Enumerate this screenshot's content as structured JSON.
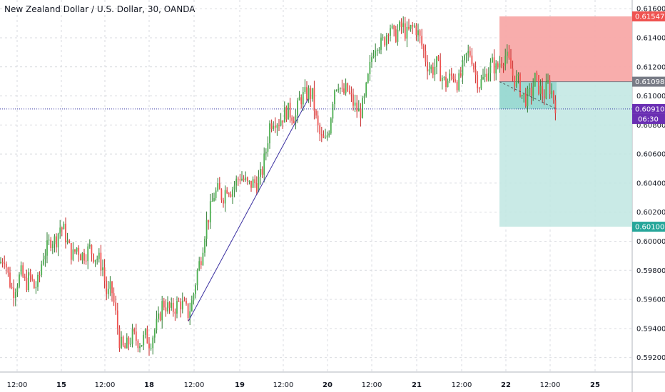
{
  "title": "New Zealand Dollar / U.S. Dollar, 30, OANDA",
  "colors": {
    "up": "#26a69a",
    "up_body": "#4caf50",
    "down": "#ef5350",
    "grid": "#d9dbe0",
    "axis_text": "#131722",
    "sl_zone": "#f8a9a8",
    "tp_zone": "#bfe6e2",
    "entry_line": "#787b86",
    "price_line": "#3d3da8",
    "trend_line": "#3a2fa0",
    "entry_label_bg": "#787b86",
    "price_label_bg": "#6a2fb3",
    "sl_label_bg": "#ef5350",
    "tp_label_bg": "#26a69a"
  },
  "chart_data": {
    "type": "candlestick",
    "title": "New Zealand Dollar / U.S. Dollar, 30, OANDA",
    "x_axis": {
      "ticks": [
        "12:00",
        "15",
        "12:00",
        "18",
        "12:00",
        "19",
        "12:00",
        "20",
        "12:00",
        "21",
        "12:00",
        "22",
        "12:00",
        "25"
      ],
      "bold": [
        "15",
        "18",
        "19",
        "20",
        "21",
        "22",
        "25"
      ]
    },
    "y_axis": {
      "range": [
        0.591,
        0.6166
      ],
      "ticks": [
        "0.61600",
        "0.61400",
        "0.61200",
        "0.61000",
        "0.60800",
        "0.60600",
        "0.60400",
        "0.60200",
        "0.60000",
        "0.59800",
        "0.59600",
        "0.59400",
        "0.59200"
      ],
      "tick_values": [
        0.616,
        0.614,
        0.612,
        0.61,
        0.608,
        0.606,
        0.604,
        0.602,
        0.6,
        0.598,
        0.596,
        0.594,
        0.592
      ]
    },
    "close_path": [
      [
        0,
        0.5985
      ],
      [
        6,
        0.599
      ],
      [
        12,
        0.5975
      ],
      [
        18,
        0.5965
      ],
      [
        24,
        0.5972
      ],
      [
        30,
        0.5978
      ],
      [
        36,
        0.597
      ],
      [
        42,
        0.5976
      ],
      [
        48,
        0.5968
      ],
      [
        54,
        0.5972
      ],
      [
        60,
        0.599
      ],
      [
        66,
        0.5995
      ],
      [
        72,
        0.6002
      ],
      [
        78,
        0.6
      ],
      [
        84,
        0.601
      ],
      [
        90,
        0.6007
      ],
      [
        96,
        0.5996
      ],
      [
        102,
        0.599
      ],
      [
        108,
        0.5996
      ],
      [
        114,
        0.599
      ],
      [
        120,
        0.5992
      ],
      [
        126,
        0.5995
      ],
      [
        132,
        0.599
      ],
      [
        138,
        0.5988
      ],
      [
        144,
        0.5982
      ],
      [
        150,
        0.5962
      ],
      [
        156,
        0.5968
      ],
      [
        162,
        0.595
      ],
      [
        168,
        0.593
      ],
      [
        174,
        0.5925
      ],
      [
        180,
        0.593
      ],
      [
        186,
        0.5935
      ],
      [
        192,
        0.5932
      ],
      [
        198,
        0.593
      ],
      [
        204,
        0.5935
      ],
      [
        210,
        0.593
      ],
      [
        216,
        0.5938
      ],
      [
        222,
        0.5945
      ],
      [
        228,
        0.5958
      ],
      [
        234,
        0.5955
      ],
      [
        240,
        0.5952
      ],
      [
        246,
        0.5955
      ],
      [
        252,
        0.5958
      ],
      [
        258,
        0.5955
      ],
      [
        264,
        0.595
      ],
      [
        270,
        0.596
      ],
      [
        276,
        0.5978
      ],
      [
        282,
        0.599
      ],
      [
        288,
        0.601
      ],
      [
        294,
        0.602
      ],
      [
        300,
        0.6032
      ],
      [
        306,
        0.6035
      ],
      [
        312,
        0.603
      ],
      [
        318,
        0.6038
      ],
      [
        324,
        0.6035
      ],
      [
        330,
        0.604
      ],
      [
        336,
        0.6045
      ],
      [
        342,
        0.6042
      ],
      [
        348,
        0.6038
      ],
      [
        354,
        0.604
      ],
      [
        360,
        0.604
      ],
      [
        366,
        0.6045
      ],
      [
        372,
        0.606
      ],
      [
        378,
        0.608
      ],
      [
        384,
        0.6085
      ],
      [
        390,
        0.6082
      ],
      [
        396,
        0.6086
      ],
      [
        402,
        0.609
      ],
      [
        408,
        0.6088
      ],
      [
        414,
        0.6085
      ],
      [
        420,
        0.6098
      ],
      [
        426,
        0.61
      ],
      [
        432,
        0.6102
      ],
      [
        438,
        0.61
      ],
      [
        444,
        0.608
      ],
      [
        450,
        0.607
      ],
      [
        456,
        0.6068
      ],
      [
        462,
        0.608
      ],
      [
        468,
        0.6105
      ],
      [
        474,
        0.611
      ],
      [
        480,
        0.61
      ],
      [
        486,
        0.6105
      ],
      [
        492,
        0.6098
      ],
      [
        498,
        0.6092
      ],
      [
        504,
        0.6088
      ],
      [
        510,
        0.6095
      ],
      [
        516,
        0.6112
      ],
      [
        522,
        0.613
      ],
      [
        528,
        0.6138
      ],
      [
        534,
        0.6135
      ],
      [
        540,
        0.614
      ],
      [
        546,
        0.615
      ],
      [
        552,
        0.614
      ],
      [
        558,
        0.6145
      ],
      [
        564,
        0.6148
      ],
      [
        570,
        0.6142
      ],
      [
        576,
        0.6146
      ],
      [
        582,
        0.6148
      ],
      [
        588,
        0.614
      ],
      [
        594,
        0.613
      ],
      [
        600,
        0.612
      ],
      [
        606,
        0.6118
      ],
      [
        612,
        0.6122
      ],
      [
        618,
        0.6115
      ],
      [
        624,
        0.6108
      ],
      [
        630,
        0.6112
      ],
      [
        636,
        0.6115
      ],
      [
        642,
        0.6108
      ],
      [
        648,
        0.6118
      ],
      [
        654,
        0.6128
      ],
      [
        660,
        0.613
      ],
      [
        666,
        0.6115
      ],
      [
        672,
        0.6108
      ],
      [
        678,
        0.6112
      ],
      [
        684,
        0.6118
      ],
      [
        690,
        0.6122
      ],
      [
        696,
        0.6118
      ],
      [
        702,
        0.6125
      ],
      [
        708,
        0.6128
      ],
      [
        714,
        0.6122
      ],
      [
        720,
        0.6112
      ],
      [
        726,
        0.611
      ],
      [
        732,
        0.61
      ],
      [
        738,
        0.6098
      ],
      [
        744,
        0.6102
      ],
      [
        750,
        0.6112
      ],
      [
        756,
        0.6105
      ],
      [
        762,
        0.61
      ],
      [
        768,
        0.6108
      ],
      [
        774,
        0.6102
      ],
      [
        780,
        0.6091
      ]
    ],
    "position": {
      "type": "short",
      "entry": 0.61098,
      "stop_loss": 0.61547,
      "take_profit": 0.601,
      "entry_label": "0.61098",
      "stop_label": "0.61547",
      "target_label": "0.60100"
    },
    "last_price": {
      "value": 0.6091,
      "label": "0.60910",
      "countdown": "06:30"
    },
    "trend_line": {
      "from": 0.5945,
      "to": 0.6098
    }
  }
}
